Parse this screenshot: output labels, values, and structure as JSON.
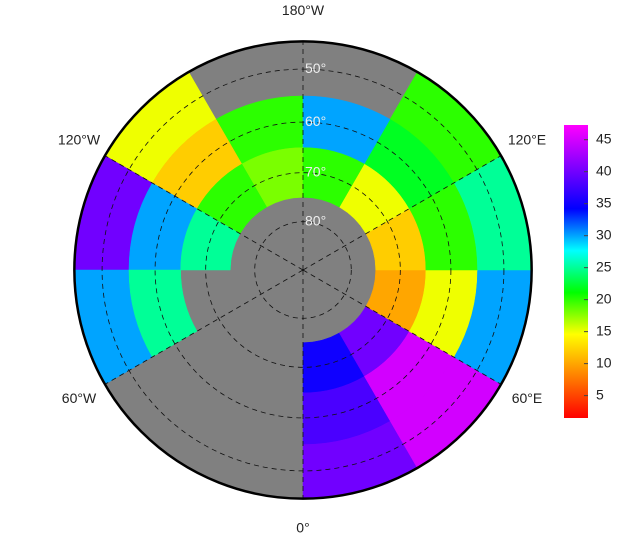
{
  "map": {
    "type": "polar-stereographic",
    "lat_lim": [
      45,
      90
    ],
    "meridians": [
      {
        "value": -180,
        "label": "180°W"
      },
      {
        "value": 120,
        "label": "120°E"
      },
      {
        "value": 60,
        "label": "60°E"
      },
      {
        "value": 0,
        "label": "0°"
      },
      {
        "value": -60,
        "label": "60°W"
      },
      {
        "value": -120,
        "label": "120°W"
      }
    ],
    "parallels": [
      {
        "value": 50,
        "label": "50°"
      },
      {
        "value": 60,
        "label": "60°"
      },
      {
        "value": 70,
        "label": "70°"
      },
      {
        "value": 80,
        "label": "80°"
      }
    ],
    "background_color": "#808080",
    "field": {
      "lat_edges": [
        45,
        55,
        65,
        75
      ],
      "lon_edges": [
        -180,
        -150,
        -120,
        -90,
        -60,
        -30,
        0,
        30,
        60,
        90,
        120,
        150,
        180
      ],
      "values": [
        [
          null,
          15,
          40,
          30,
          null,
          null,
          40,
          45,
          30,
          25,
          20,
          null
        ],
        [
          20,
          12,
          30,
          25,
          null,
          null,
          38,
          45,
          15,
          20,
          22,
          30
        ],
        [
          18,
          20,
          25,
          null,
          null,
          null,
          35,
          40,
          10,
          12,
          15,
          20
        ]
      ]
    },
    "colorbar": {
      "lim": [
        1.5,
        47.3
      ],
      "ticks": [
        5,
        10,
        15,
        20,
        25,
        30,
        35,
        40,
        45
      ],
      "colors": [
        "#ff0000",
        "#ff8000",
        "#ffff00",
        "#00ff00",
        "#00ffff",
        "#0000ff",
        "#8000ff",
        "#ff00ff"
      ]
    }
  }
}
